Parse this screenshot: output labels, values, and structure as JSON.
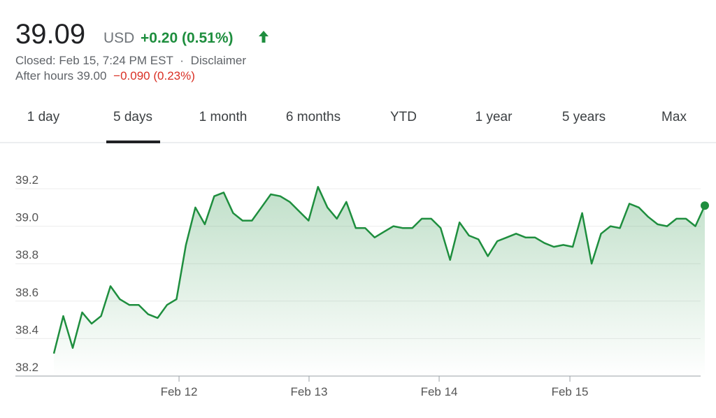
{
  "header": {
    "price": "39.09",
    "currency": "USD",
    "change": "+0.20 (0.51%)",
    "closed": "Closed: Feb 15, 7:24 PM EST",
    "separator": "·",
    "disclaimer": "Disclaimer",
    "after_hours": "After hours 39.00",
    "after_hours_change": "−0.090 (0.23%)"
  },
  "tabs": {
    "items": [
      "1 day",
      "5 days",
      "1 month",
      "6 months",
      "YTD",
      "1 year",
      "5 years",
      "Max"
    ],
    "selected": 1
  },
  "chart_data": {
    "type": "area",
    "color": "#1e8e3e",
    "values": [
      38.32,
      38.52,
      38.35,
      38.54,
      38.48,
      38.52,
      38.68,
      38.61,
      38.58,
      38.58,
      38.53,
      38.51,
      38.58,
      38.61,
      38.9,
      39.1,
      39.01,
      39.16,
      39.18,
      39.07,
      39.03,
      39.03,
      39.1,
      39.17,
      39.16,
      39.13,
      39.08,
      39.03,
      39.21,
      39.1,
      39.04,
      39.13,
      38.99,
      38.99,
      38.94,
      38.97,
      39.0,
      38.99,
      38.99,
      39.04,
      39.04,
      38.99,
      38.82,
      39.02,
      38.95,
      38.93,
      38.84,
      38.92,
      38.94,
      38.96,
      38.94,
      38.94,
      38.91,
      38.89,
      38.9,
      38.89,
      39.07,
      38.8,
      38.96,
      39.0,
      38.99,
      39.12,
      39.1,
      39.05,
      39.01,
      39.0,
      39.04,
      39.04,
      39.0,
      39.11
    ],
    "xlim": [
      0,
      69
    ],
    "xticks": [
      {
        "value": 13.27,
        "label": "Feb 12"
      },
      {
        "value": 27.05,
        "label": "Feb 13"
      },
      {
        "value": 40.84,
        "label": "Feb 14"
      },
      {
        "value": 54.7,
        "label": "Feb 15"
      }
    ],
    "ylim": [
      38.2,
      39.3
    ],
    "yticks": [
      {
        "value": 38.2,
        "label": "38.2"
      },
      {
        "value": 38.4,
        "label": "38.4"
      },
      {
        "value": 38.6,
        "label": "38.6"
      },
      {
        "value": 38.8,
        "label": "38.8"
      },
      {
        "value": 39.0,
        "label": "39.0"
      },
      {
        "value": 39.2,
        "label": "39.2"
      }
    ],
    "grid": true
  }
}
